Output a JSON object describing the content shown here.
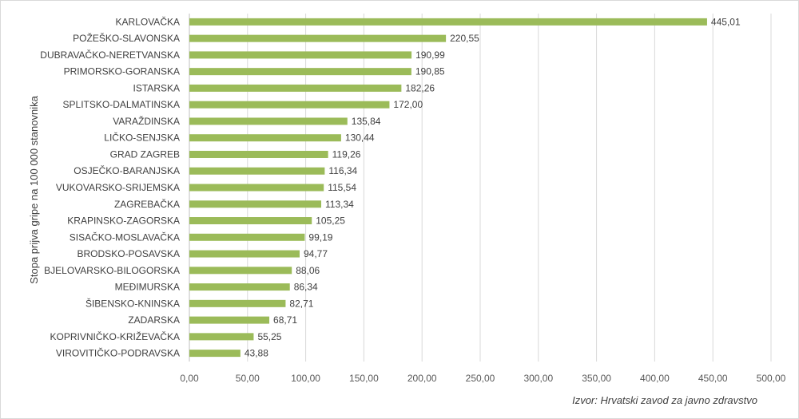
{
  "chart_data": {
    "type": "bar",
    "orientation": "horizontal",
    "categories": [
      "KARLOVAČKA",
      "POŽEŠKO-SLAVONSKA",
      "DUBRAVAČKO-NERETVANSKA",
      "PRIMORSKO-GORANSKA",
      "ISTARSKA",
      "SPLITSKO-DALMATINSKA",
      "VARAŽDINSKA",
      "LIČKO-SENJSKA",
      "GRAD ZAGREB",
      "OSJEČKO-BARANJSKA",
      "VUKOVARSKO-SRIJEMSKA",
      "ZAGREBAČKA",
      "KRAPINSKO-ZAGORSKA",
      "SISAČKO-MOSLAVAČKA",
      "BRODSKO-POSAVSKA",
      "BJELOVARSKO-BILOGORSKA",
      "MEĐIMURSKA",
      "ŠIBENSKO-KNINSKA",
      "ZADARSKA",
      "KOPRIVNIČKO-KRIŽEVAČKA",
      "VIROVITIČKO-PODRAVSKA"
    ],
    "values": [
      445.01,
      220.55,
      190.99,
      190.85,
      182.26,
      172.0,
      135.84,
      130.44,
      119.26,
      116.34,
      115.54,
      113.34,
      105.25,
      99.19,
      94.77,
      88.06,
      86.34,
      82.71,
      68.71,
      55.25,
      43.88
    ],
    "value_labels": [
      "445,01",
      "220,55",
      "190,99",
      "190,85",
      "182,26",
      "172,00",
      "135,84",
      "130,44",
      "119,26",
      "116,34",
      "115,54",
      "113,34",
      "105,25",
      "99,19",
      "94,77",
      "88,06",
      "86,34",
      "82,71",
      "68,71",
      "55,25",
      "43,88"
    ],
    "xlabel": "",
    "ylabel": "Stopa prijva gripe na 100 000 stanovnika",
    "xlim": [
      0,
      500
    ],
    "x_ticks": [
      0,
      50,
      100,
      150,
      200,
      250,
      300,
      350,
      400,
      450,
      500
    ],
    "x_tick_labels": [
      "0,00",
      "50,00",
      "100,00",
      "150,00",
      "200,00",
      "250,00",
      "300,00",
      "350,00",
      "400,00",
      "450,00",
      "500,00"
    ],
    "grid": "vertical",
    "bar_color": "#9bbb59",
    "gridline_color": "#d9d9d9"
  },
  "source_note": "Izvor: Hrvatski zavod za javno zdravstvo"
}
